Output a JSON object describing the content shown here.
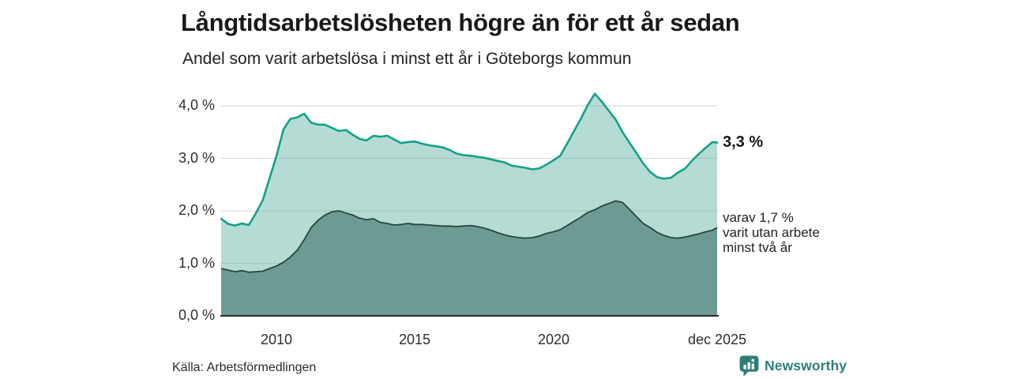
{
  "header": {
    "title": "Långtidsarbetslösheten högre än för ett år sedan",
    "subtitle": "Andel som varit arbetslösa i minst ett år i Göteborgs kommun"
  },
  "chart": {
    "y_ticks": [
      "4,0 %",
      "3,0 %",
      "2,0 %",
      "1,0 %",
      "0,0 %"
    ],
    "x_ticks": [
      "2010",
      "2015",
      "2020",
      "dec 2025"
    ],
    "end_label_total": "3,3 %",
    "end_label_subset": "varav 1,7 %\nvarit utan arbete\nminst två år"
  },
  "footer": {
    "source": "Källa: Arbetsförmedlingen",
    "brand": "Newsworthy"
  },
  "colors": {
    "accent_line": "#13a089",
    "light_fill_rendered": "#b5dcd4",
    "dark_fill_rendered": "#6f9c94",
    "dark_line": "#24473f",
    "gridline": "#d9d9d9",
    "axis": "#2b2b2b",
    "brand_teal": "#2e7e76",
    "text_dark": "#191919"
  },
  "chart_data": {
    "type": "area",
    "title": "Långtidsarbetslösheten högre än för ett år sedan",
    "subtitle": "Andel som varit arbetslösa i minst ett år i Göteborgs kommun",
    "unit": "%",
    "x_unit": "decimal_year",
    "xlim": [
      2008.0,
      2025.92
    ],
    "ylim": [
      0,
      4.3
    ],
    "y_gridlines": [
      1,
      2,
      3,
      4
    ],
    "y_tick_values": [
      4,
      3,
      2,
      1,
      0
    ],
    "x_tick_values": [
      2010,
      2015,
      2020,
      2025.92
    ],
    "legend_position": "end-of-line-labels",
    "x": [
      2008.0,
      2008.25,
      2008.5,
      2008.75,
      2009.0,
      2009.25,
      2009.5,
      2009.75,
      2010.0,
      2010.25,
      2010.5,
      2010.75,
      2011.0,
      2011.25,
      2011.5,
      2011.75,
      2012.0,
      2012.25,
      2012.5,
      2012.75,
      2013.0,
      2013.25,
      2013.5,
      2013.75,
      2014.0,
      2014.25,
      2014.5,
      2014.75,
      2015.0,
      2015.25,
      2015.5,
      2015.75,
      2016.0,
      2016.25,
      2016.5,
      2016.75,
      2017.0,
      2017.25,
      2017.5,
      2017.75,
      2018.0,
      2018.25,
      2018.5,
      2018.75,
      2019.0,
      2019.25,
      2019.5,
      2019.75,
      2020.0,
      2020.25,
      2020.5,
      2020.75,
      2021.0,
      2021.25,
      2021.5,
      2021.75,
      2022.0,
      2022.25,
      2022.5,
      2022.75,
      2023.0,
      2023.25,
      2023.5,
      2023.75,
      2024.0,
      2024.25,
      2024.5,
      2024.75,
      2025.0,
      2025.25,
      2025.5,
      2025.75,
      2025.92
    ],
    "series": [
      {
        "name": "Andel arbetslösa minst ett år",
        "end_label": "3,3 %",
        "end_value": 3.3,
        "stroke": "#13a089",
        "rendered_fill": "#b5dcd4",
        "values": [
          1.85,
          1.75,
          1.72,
          1.76,
          1.73,
          1.95,
          2.2,
          2.62,
          3.05,
          3.55,
          3.75,
          3.78,
          3.85,
          3.68,
          3.64,
          3.64,
          3.58,
          3.52,
          3.54,
          3.45,
          3.37,
          3.34,
          3.43,
          3.41,
          3.43,
          3.36,
          3.29,
          3.31,
          3.32,
          3.28,
          3.25,
          3.23,
          3.21,
          3.16,
          3.09,
          3.06,
          3.05,
          3.03,
          3.01,
          2.98,
          2.95,
          2.92,
          2.86,
          2.84,
          2.82,
          2.79,
          2.81,
          2.88,
          2.96,
          3.05,
          3.28,
          3.52,
          3.76,
          4.02,
          4.23,
          4.08,
          3.91,
          3.74,
          3.5,
          3.3,
          3.1,
          2.9,
          2.74,
          2.64,
          2.61,
          2.63,
          2.73,
          2.8,
          2.95,
          3.08,
          3.2,
          3.31,
          3.3
        ]
      },
      {
        "name": "varav utan arbete minst två år",
        "end_label": "1,7 %",
        "end_value": 1.7,
        "stroke": "#24473f",
        "rendered_fill": "#6f9c94",
        "values": [
          0.9,
          0.87,
          0.84,
          0.86,
          0.83,
          0.84,
          0.85,
          0.9,
          0.95,
          1.02,
          1.12,
          1.25,
          1.45,
          1.68,
          1.82,
          1.92,
          1.98,
          2.0,
          1.96,
          1.92,
          1.86,
          1.83,
          1.85,
          1.78,
          1.76,
          1.73,
          1.74,
          1.76,
          1.74,
          1.74,
          1.73,
          1.72,
          1.71,
          1.71,
          1.7,
          1.71,
          1.72,
          1.7,
          1.67,
          1.63,
          1.58,
          1.54,
          1.51,
          1.49,
          1.48,
          1.49,
          1.52,
          1.57,
          1.6,
          1.64,
          1.72,
          1.8,
          1.88,
          1.97,
          2.02,
          2.09,
          2.14,
          2.19,
          2.16,
          2.03,
          1.89,
          1.76,
          1.68,
          1.59,
          1.53,
          1.49,
          1.48,
          1.5,
          1.53,
          1.56,
          1.6,
          1.63,
          1.68
        ]
      }
    ]
  }
}
